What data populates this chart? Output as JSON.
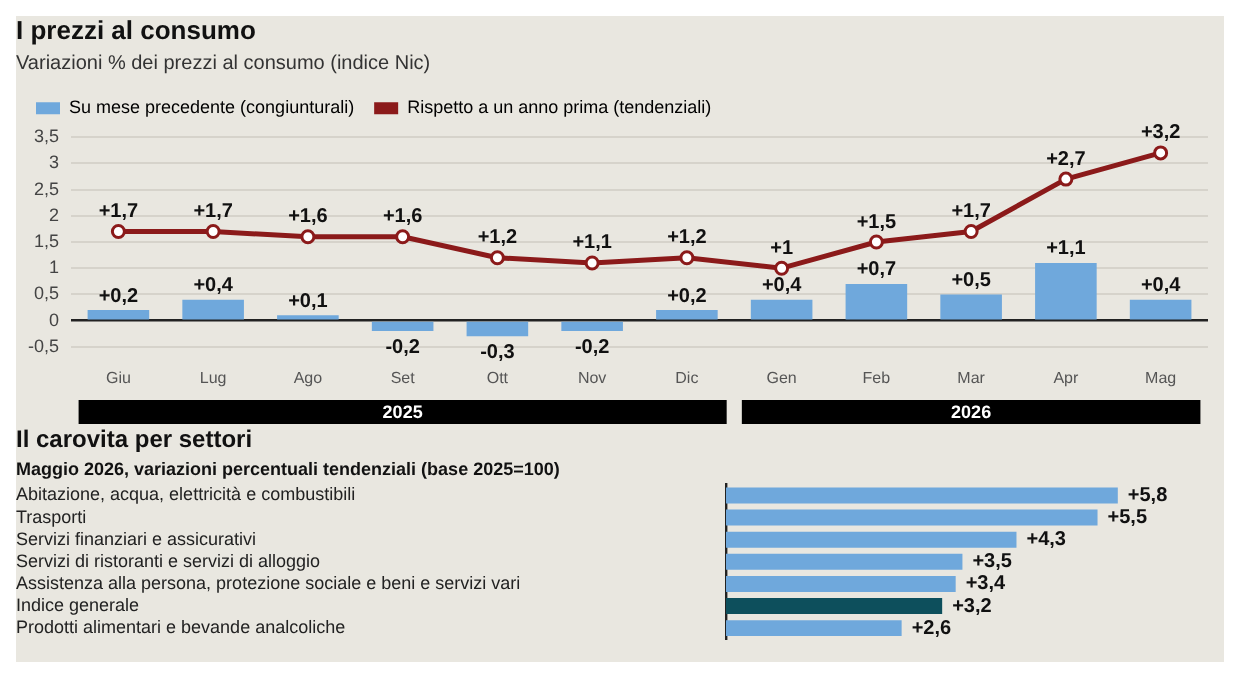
{
  "chart_data": [
    {
      "type": "bar",
      "title": "I prezzi al consumo",
      "subtitle": "Variazioni % dei prezzi al consumo (indice Nic)",
      "categories": [
        "Giu",
        "Lug",
        "Ago",
        "Set",
        "Ott",
        "Nov",
        "Dic",
        "Gen",
        "Feb",
        "Mar",
        "Apr",
        "Mag"
      ],
      "series": [
        {
          "name": "Su mese precedente (congiunturali)",
          "type": "bar",
          "color": "#6fa8dc",
          "values": [
            0.2,
            0.4,
            0.1,
            -0.2,
            -0.3,
            -0.2,
            0.2,
            0.4,
            0.7,
            0.5,
            1.1,
            0.4
          ],
          "value_labels": [
            "+0,2",
            "+0,4",
            "+0,1",
            "-0,2",
            "-0,3",
            "-0,2",
            "+0,2",
            "+0,4",
            "+0,7",
            "+0,5",
            "+1,1",
            "+0,4"
          ]
        },
        {
          "name": "Rispetto a un anno prima (tendenziali)",
          "type": "line",
          "color": "#8b1a1a",
          "values": [
            1.7,
            1.7,
            1.6,
            1.6,
            1.2,
            1.1,
            1.2,
            1.0,
            1.5,
            1.7,
            2.7,
            3.2
          ],
          "value_labels": [
            "+1,7",
            "+1,7",
            "+1,6",
            "+1,6",
            "+1,2",
            "+1,1",
            "+1,2",
            "+1",
            "+1,5",
            "+1,7",
            "+2,7",
            "+3,2"
          ]
        }
      ],
      "ylim": [
        -0.5,
        3.5
      ],
      "yticks": [
        {
          "value": -0.5,
          "label": "-0,5"
        },
        0,
        {
          "value": 0.5,
          "label": "0,5"
        },
        1,
        {
          "value": 1.5,
          "label": "1,5"
        },
        2,
        {
          "value": 2.5,
          "label": "2,5"
        },
        3,
        {
          "value": 3.5,
          "label": "3,5"
        }
      ],
      "grid": "y",
      "legend": "top left",
      "marker": "circle",
      "line_style": "solid",
      "annotations": [
        "2025",
        "2026"
      ]
    },
    {
      "type": "bar",
      "orientation": "horizontal",
      "title": "Il carovita per settori",
      "subtitle": "Maggio 2026, variazioni percentuali tendenziali (base 2025=100)",
      "categories": [
        "Abitazione, acqua, elettricità e combustibili",
        "Trasporti",
        "Servizi finanziari e assicurativi",
        "Servizi di ristoranti e servizi di alloggio",
        "Assistenza alla persona, protezione sociale e beni e servizi vari",
        "Indice generale",
        "Prodotti alimentari e bevande analcoliche"
      ],
      "values": [
        5.8,
        5.5,
        4.3,
        3.5,
        3.4,
        3.2,
        2.6
      ],
      "colors": [
        "#6fa8dc",
        "#6fa8dc",
        "#6fa8dc",
        "#6fa8dc",
        "#6fa8dc",
        "#0d4f5c",
        "#6fa8dc"
      ],
      "value_labels": [
        "+5,8",
        "+5,5",
        "+4,3",
        "+3,5",
        "+3,4",
        "+3,2",
        "+2,6"
      ]
    }
  ]
}
